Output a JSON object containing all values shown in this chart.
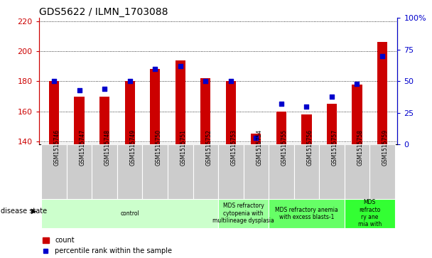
{
  "title": "GDS5622 / ILMN_1703088",
  "samples": [
    "GSM1515746",
    "GSM1515747",
    "GSM1515748",
    "GSM1515749",
    "GSM1515750",
    "GSM1515751",
    "GSM1515752",
    "GSM1515753",
    "GSM1515754",
    "GSM1515755",
    "GSM1515756",
    "GSM1515757",
    "GSM1515758",
    "GSM1515759"
  ],
  "counts": [
    180,
    170,
    170,
    180,
    188,
    194,
    182,
    180,
    145,
    160,
    158,
    165,
    178,
    206
  ],
  "percentile_ranks": [
    50,
    43,
    44,
    50,
    60,
    62,
    50,
    50,
    5,
    32,
    30,
    38,
    48,
    70
  ],
  "ylim_left": [
    138,
    222
  ],
  "ylim_right": [
    0,
    100
  ],
  "yticks_left": [
    140,
    160,
    180,
    200,
    220
  ],
  "yticks_right": [
    0,
    25,
    50,
    75,
    100
  ],
  "bar_color": "#cc0000",
  "dot_color": "#0000cc",
  "bar_width": 0.4,
  "bar_bottom": 138,
  "disease_groups": [
    {
      "label": "control",
      "start": 0,
      "end": 6,
      "color": "#ccffcc"
    },
    {
      "label": "MDS refractory\ncytopenia with\nmultilineage dysplasia",
      "start": 7,
      "end": 8,
      "color": "#99ff99"
    },
    {
      "label": "MDS refractory anemia\nwith excess blasts-1",
      "start": 9,
      "end": 11,
      "color": "#66ff66"
    },
    {
      "label": "MDS\nrefracto\nry ane\nmia with",
      "start": 12,
      "end": 13,
      "color": "#33ff33"
    }
  ],
  "background_color": "#ffffff",
  "bar_edge_color": "none",
  "tick_label_color_left": "#cc0000",
  "tick_label_color_right": "#0000cc",
  "xticklabel_bg": "#cccccc",
  "legend_labels": [
    "count",
    "percentile rank within the sample"
  ],
  "disease_state_label": "disease state"
}
